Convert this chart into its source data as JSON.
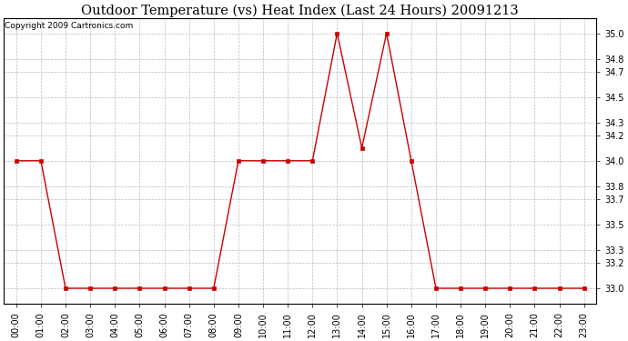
{
  "title": "Outdoor Temperature (vs) Heat Index (Last 24 Hours) 20091213",
  "copyright_text": "Copyright 2009 Cartronics.com",
  "hours": [
    "00:00",
    "01:00",
    "02:00",
    "03:00",
    "04:00",
    "05:00",
    "06:00",
    "07:00",
    "08:00",
    "09:00",
    "10:00",
    "11:00",
    "12:00",
    "13:00",
    "14:00",
    "15:00",
    "16:00",
    "17:00",
    "18:00",
    "19:00",
    "20:00",
    "21:00",
    "22:00",
    "23:00"
  ],
  "values": [
    34.0,
    34.0,
    33.0,
    33.0,
    33.0,
    33.0,
    33.0,
    33.0,
    33.0,
    34.0,
    34.0,
    34.0,
    34.0,
    35.0,
    34.1,
    35.0,
    34.0,
    33.0,
    33.0,
    33.0,
    33.0,
    33.0,
    33.0,
    33.0
  ],
  "line_color": "#cc0000",
  "marker_color": "#cc0000",
  "bg_color": "#ffffff",
  "plot_bg_color": "#ffffff",
  "grid_color": "#aaaaaa",
  "ylim_min": 32.88,
  "ylim_max": 35.12,
  "yticks": [
    33.0,
    33.2,
    33.3,
    33.5,
    33.7,
    33.8,
    34.0,
    34.2,
    34.3,
    34.5,
    34.7,
    34.8,
    35.0
  ],
  "title_fontsize": 10.5,
  "copyright_fontsize": 6.5,
  "tick_fontsize": 7,
  "ytick_fontsize": 7
}
